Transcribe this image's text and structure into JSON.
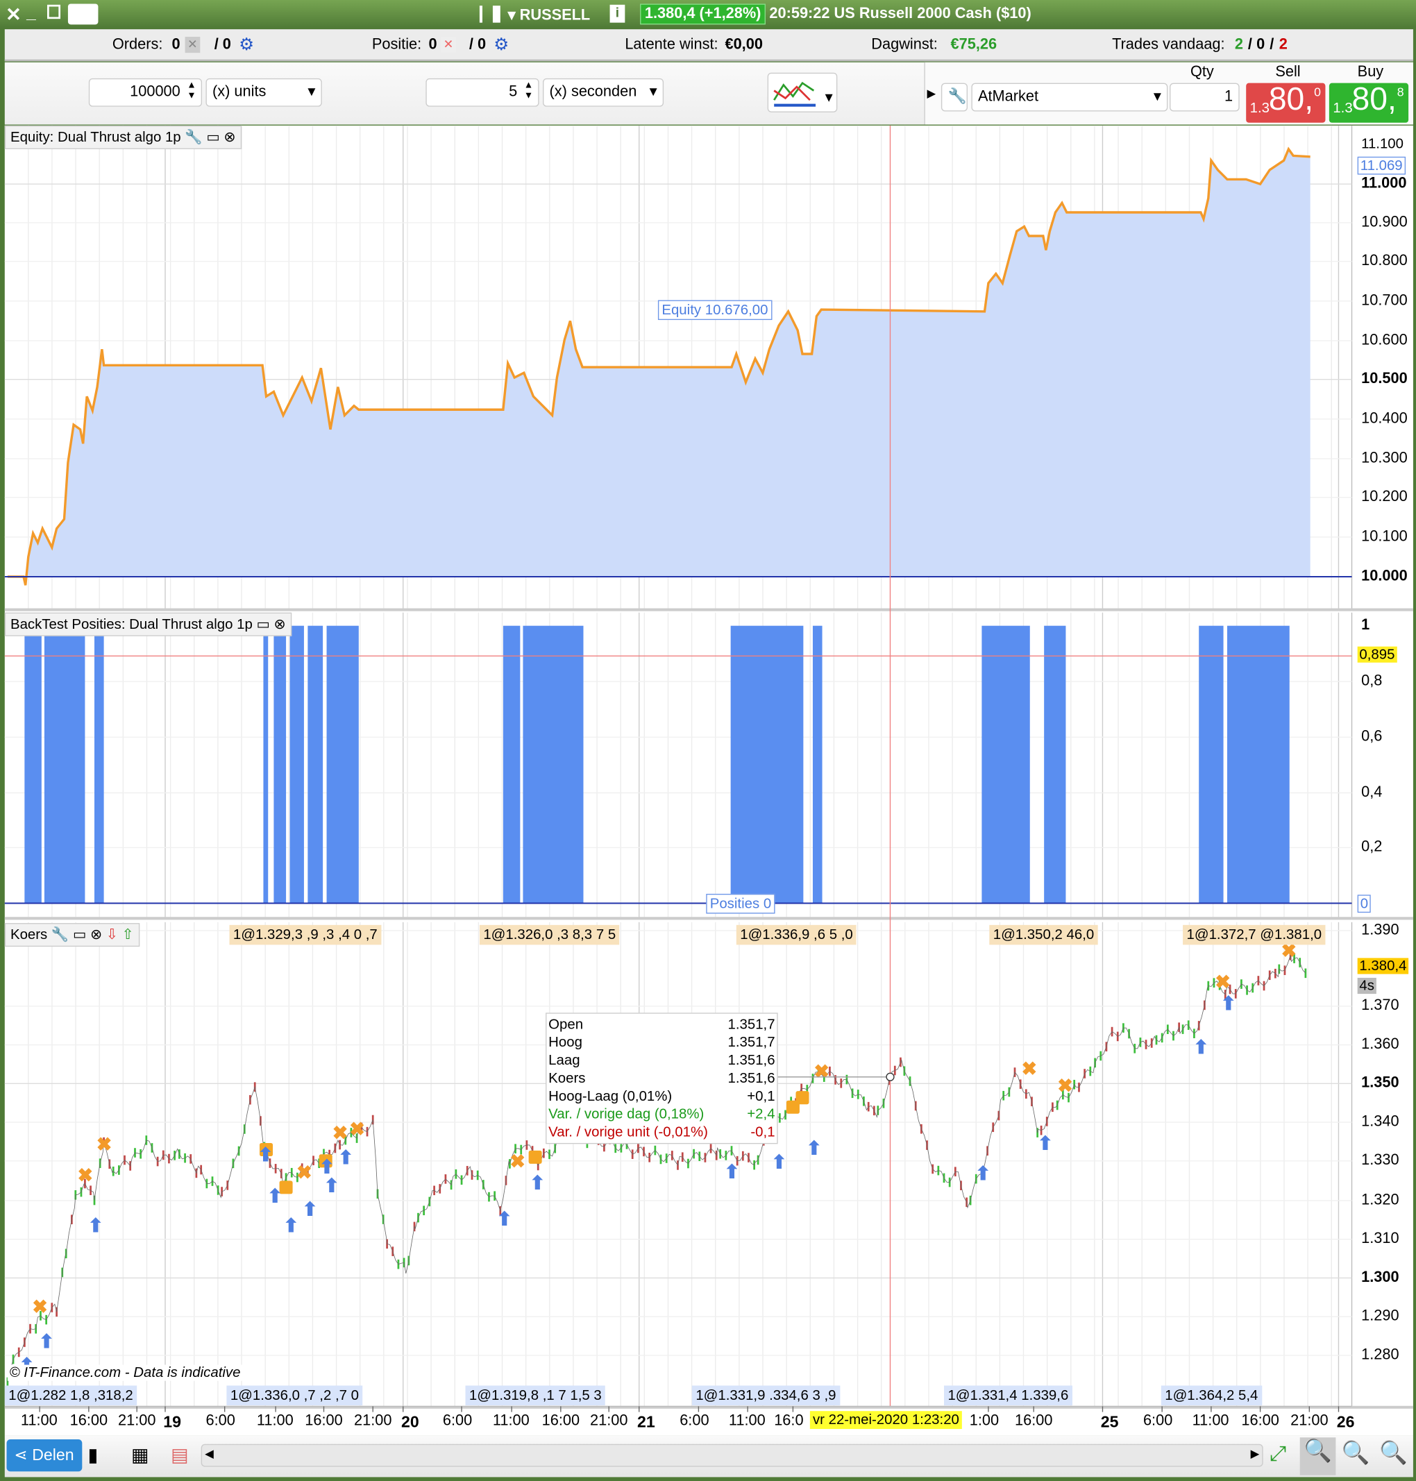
{
  "titlebar": {
    "instrument": "RUSSELL",
    "price_badge": "1.380,4 (+1,28%)",
    "time_desc": "20:59:22 US Russell 2000 Cash ($10)",
    "badge_color": "#2fb52f"
  },
  "infobar": {
    "orders_label": "Orders:",
    "orders_value": "0",
    "orders_pending": "/ 0",
    "positie_label": "Positie:",
    "positie_value": "0",
    "positie_pending": "/ 0",
    "latent_label": "Latente winst:",
    "latent_value": "€0,00",
    "dagwinst_label": "Dagwinst:",
    "dagwinst_value": "€75,26",
    "trades_label": "Trades vandaag:",
    "trades_win": "2",
    "trades_sep1": "/",
    "trades_mid": "0",
    "trades_sep2": "/",
    "trades_loss": "2"
  },
  "toolbar": {
    "units_value": "100000",
    "units_select": "(x) units",
    "sec_value": "5",
    "sec_select": "(x) seconden",
    "order_type": "AtMarket",
    "qty_label": "Qty",
    "qty_value": "1",
    "sell_label": "Sell",
    "buy_label": "Buy",
    "sell_prefix": "1.3",
    "sell_big": "80,",
    "sell_sup": "0",
    "buy_prefix": "1.3",
    "buy_big": "80,",
    "buy_sup": "8"
  },
  "equity": {
    "title": "Equity: Dual Thrust algo 1p",
    "cursor_label": "Equity  10.676,00",
    "current": "11.069",
    "axis": [
      [
        "11.100",
        153,
        false
      ],
      [
        "11.000",
        195,
        true
      ],
      [
        "10.900",
        236,
        false
      ],
      [
        "10.800",
        277,
        false
      ],
      [
        "10.700",
        319,
        false
      ],
      [
        "10.600",
        361,
        false
      ],
      [
        "10.500",
        402,
        true
      ],
      [
        "10.400",
        444,
        false
      ],
      [
        "10.300",
        486,
        false
      ],
      [
        "10.200",
        527,
        false
      ],
      [
        "10.100",
        569,
        false
      ],
      [
        "10.000",
        611,
        true
      ]
    ]
  },
  "positions": {
    "title": "BackTest Posities: Dual Thrust algo 1p",
    "cursor_label": "Posities  0",
    "current": "0,895",
    "zero": "0",
    "axis": [
      [
        "1",
        663,
        true
      ],
      [
        "0,8",
        722,
        false
      ],
      [
        "0,6",
        781,
        false
      ],
      [
        "0,4",
        840,
        false
      ],
      [
        "0,2",
        898,
        false
      ]
    ]
  },
  "koers": {
    "title": "Koers",
    "current": "1.380,4",
    "countdown": "4s",
    "watermark": "© IT-Finance.com - Data is indicative",
    "axis": [
      [
        "1.390",
        986,
        false
      ],
      [
        "1.370",
        1066,
        false
      ],
      [
        "1.360",
        1107,
        false
      ],
      [
        "1.350",
        1148,
        true
      ],
      [
        "1.340",
        1189,
        false
      ],
      [
        "1.330",
        1230,
        false
      ],
      [
        "1.320",
        1272,
        false
      ],
      [
        "1.310",
        1313,
        false
      ],
      [
        "1.300",
        1354,
        true
      ],
      [
        "1.290",
        1395,
        false
      ],
      [
        "1.280",
        1436,
        false
      ]
    ],
    "top_trades": [
      "1@1.329,3 ,9 ,3 ,4  0 ,7",
      "1@1.326,0 ,3 8,3 7 5",
      "1@1.336,9 ,6 5 ,0",
      "1@1.350,2 46,0",
      "1@1.372,7 @1.381,0"
    ],
    "bottom_trades": [
      "1@1.282 1,8 ,318,2",
      "1@1.336,0 ,7 ,2 ,7 0",
      "1@1.319,8 ,1 7 1,5 3",
      "1@1.331,9 .334,6 3 ,9",
      "1@1.331,4 1.339,6",
      "1@1.364,2 5,4"
    ],
    "tooltip": [
      [
        "Open",
        "1.351,7",
        "#000"
      ],
      [
        "Hoog",
        "1.351,7",
        "#000"
      ],
      [
        "Laag",
        "1.351,6",
        "#000"
      ],
      [
        "Koers",
        "1.351,6",
        "#000"
      ],
      [
        "Hoog-Laag (0,01%)",
        "+0,1",
        "#000"
      ],
      [
        "Var. / vorige dag (0,18%)",
        "+2,4",
        "#1a9a1a"
      ],
      [
        "Var. / vorige unit (-0,01%)",
        "-0,1",
        "#c00000"
      ]
    ]
  },
  "time_axis": {
    "ticks": [
      [
        "11:00",
        42,
        false
      ],
      [
        "16:00",
        94,
        false
      ],
      [
        "21:00",
        145,
        false
      ],
      [
        "19",
        175,
        true
      ],
      [
        "6:00",
        238,
        false
      ],
      [
        "11:00",
        292,
        false
      ],
      [
        "16:00",
        343,
        false
      ],
      [
        "21:00",
        395,
        false
      ],
      [
        "20",
        427,
        true
      ],
      [
        "6:00",
        489,
        false
      ],
      [
        "11:00",
        542,
        false
      ],
      [
        "16:00",
        594,
        false
      ],
      [
        "21:00",
        645,
        false
      ],
      [
        "21",
        677,
        true
      ],
      [
        "6:00",
        740,
        false
      ],
      [
        "11:00",
        792,
        false
      ],
      [
        "16:0",
        840,
        false
      ],
      [
        "1:00",
        1047,
        false
      ],
      [
        "16:00",
        1095,
        false
      ],
      [
        "25",
        1168,
        true
      ],
      [
        "6:00",
        1231,
        false
      ],
      [
        "11:00",
        1283,
        false
      ],
      [
        "16:00",
        1335,
        false
      ],
      [
        "21:00",
        1387,
        false
      ],
      [
        "26",
        1418,
        true
      ]
    ],
    "cursor_date": "vr 22-mei-2020 1:23:20"
  },
  "bottombar": {
    "share_label": "Delen"
  }
}
